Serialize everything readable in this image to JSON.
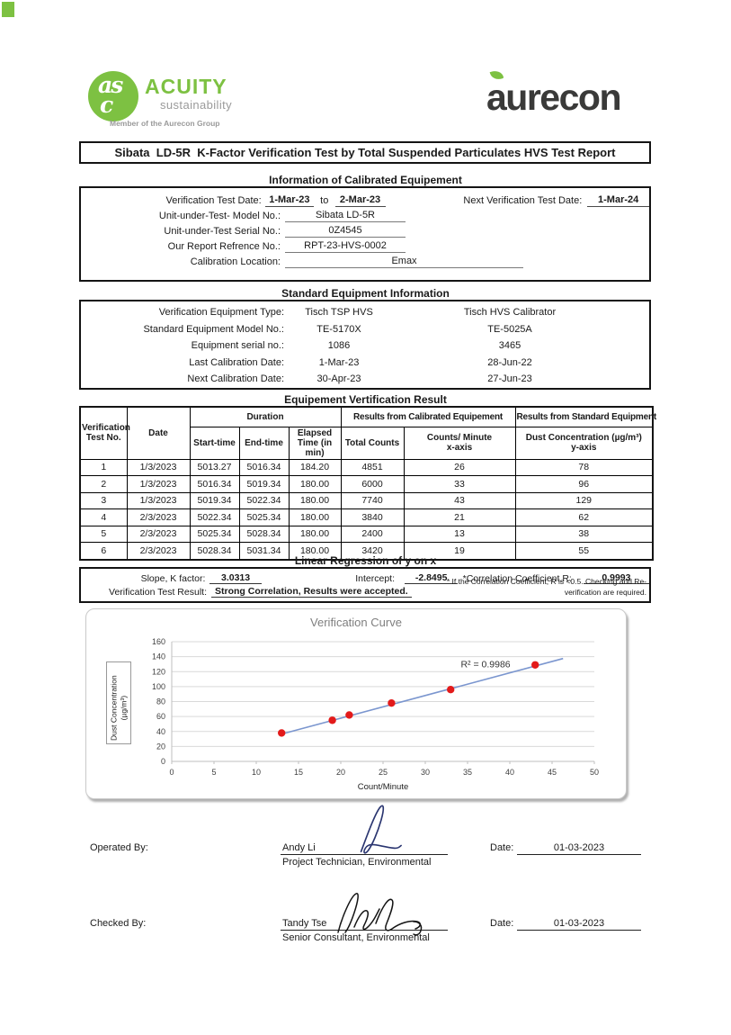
{
  "logos": {
    "acuity": {
      "circle_letters_top": "as",
      "circle_letters_bottom": "c",
      "name": "ACUITY",
      "tagline": "sustainability",
      "member_line": "Member of the Aurecon Group",
      "green": "#7dc142"
    },
    "aurecon": {
      "name": "aurecon",
      "dark": "#3a3a39"
    }
  },
  "title": "Sibata  LD-5R  K-Factor Verification Test by Total Suspended Particulates HVS Test Report",
  "info_section": {
    "heading": "Information of Calibrated Equipement",
    "test_date_label": "Verification Test Date:",
    "test_date_from": "1-Mar-23",
    "to_word": "to",
    "test_date_to": "2-Mar-23",
    "next_date_label": "Next Verification Test Date:",
    "next_date": "1-Mar-24",
    "rows": [
      {
        "label": "Unit-under-Test- Model No.:",
        "value": "Sibata LD-5R",
        "wide": false
      },
      {
        "label": "Unit-under-Test Serial No.:",
        "value": "0Z4545",
        "wide": false
      },
      {
        "label": "Our Report Refrence No.:",
        "value": "RPT-23-HVS-0002",
        "wide": false
      },
      {
        "label": "Calibration Location:",
        "value": "Emax",
        "wide": true
      }
    ]
  },
  "standard_section": {
    "heading": "Standard Equipment Information",
    "rows": [
      {
        "label": "Verification Equipment Type:",
        "col1": "Tisch TSP HVS",
        "col2": "Tisch HVS Calibrator"
      },
      {
        "label": "Standard Equipment Model No.:",
        "col1": "TE-5170X",
        "col2": "TE-5025A"
      },
      {
        "label": "Equipment serial no.:",
        "col1": "1086",
        "col2": "3465"
      },
      {
        "label": "Last Calibration Date:",
        "col1": "1-Mar-23",
        "col2": "28-Jun-22"
      },
      {
        "label": "Next Calibration Date:",
        "col1": "30-Apr-23",
        "col2": "27-Jun-23"
      }
    ]
  },
  "result_section": {
    "heading": "Equipement Vertification Result",
    "headers": {
      "test_no": "Verification Test No.",
      "date": "Date",
      "duration": "Duration",
      "start": "Start-time",
      "end": "End-time",
      "elapsed": "Elapsed Time (in min)",
      "calibrated_group": "Results from Calibrated Equipement",
      "total_counts": "Total Counts",
      "counts_minute": "Counts/ Minute",
      "counts_minute_sub": "x-axis",
      "standard_group": "Results from Standard Equipment",
      "dust_conc": "Dust Concentration (µg/m³)",
      "dust_conc_sub": "y-axis"
    },
    "rows": [
      [
        "1",
        "1/3/2023",
        "5013.27",
        "5016.34",
        "184.20",
        "4851",
        "26",
        "78"
      ],
      [
        "2",
        "1/3/2023",
        "5016.34",
        "5019.34",
        "180.00",
        "6000",
        "33",
        "96"
      ],
      [
        "3",
        "1/3/2023",
        "5019.34",
        "5022.34",
        "180.00",
        "7740",
        "43",
        "129"
      ],
      [
        "4",
        "2/3/2023",
        "5022.34",
        "5025.34",
        "180.00",
        "3840",
        "21",
        "62"
      ],
      [
        "5",
        "2/3/2023",
        "5025.34",
        "5028.34",
        "180.00",
        "2400",
        "13",
        "38"
      ],
      [
        "6",
        "2/3/2023",
        "5028.34",
        "5031.34",
        "180.00",
        "3420",
        "19",
        "55"
      ]
    ]
  },
  "regression_section": {
    "heading": "Linear Regression of y on x",
    "slope_label": "Slope, K factor:",
    "slope": "3.0313",
    "intercept_label": "Intercept:",
    "intercept": "-2.8495",
    "corr_label": "*Correlation Coefficient,R:",
    "corr": "0.9993",
    "result_label": "Verification Test Result:",
    "result": "Strong Correlation, Results were accepted.",
    "footnote": "* If the Correlation Coefficient, R is <0.5. Checking and Re-verification are required."
  },
  "chart_data": {
    "type": "scatter",
    "title": "Verification Curve",
    "xlabel": "Count/Minute",
    "ylabel": "Dust Concentration (µg/m³)",
    "ylabel_line1": "Dust Concentration",
    "ylabel_line2": "(µg/m³)",
    "x": [
      26,
      33,
      43,
      21,
      13,
      19
    ],
    "y": [
      78,
      96,
      129,
      62,
      38,
      55
    ],
    "xlim": [
      0,
      50
    ],
    "ylim": [
      0,
      160
    ],
    "x_ticks": [
      0,
      5,
      10,
      15,
      20,
      25,
      30,
      35,
      40,
      45,
      50
    ],
    "y_ticks": [
      0,
      20,
      40,
      60,
      80,
      100,
      120,
      140,
      160
    ],
    "trendline": {
      "slope": 3.0313,
      "intercept": -2.8495,
      "x_start": 12.8,
      "x_end": 46.3
    },
    "annotation": "R² = 0.9986",
    "annotation_pos": {
      "x": 34.2,
      "y": 126
    },
    "point_color": "#e31a1a",
    "line_color": "#7b96cf",
    "grid": true,
    "legend": false
  },
  "signatures": [
    {
      "role_label": "Operated By:",
      "name": "Andy Li",
      "title": "Project Technician, Environmental",
      "date_label": "Date:",
      "date": "01-03-2023",
      "ink": "#2a3570"
    },
    {
      "role_label": "Checked By:",
      "name": "Tandy Tse",
      "title": "Senior Consultant, Environmental",
      "date_label": "Date:",
      "date": "01-03-2023",
      "ink": "#141414"
    }
  ]
}
